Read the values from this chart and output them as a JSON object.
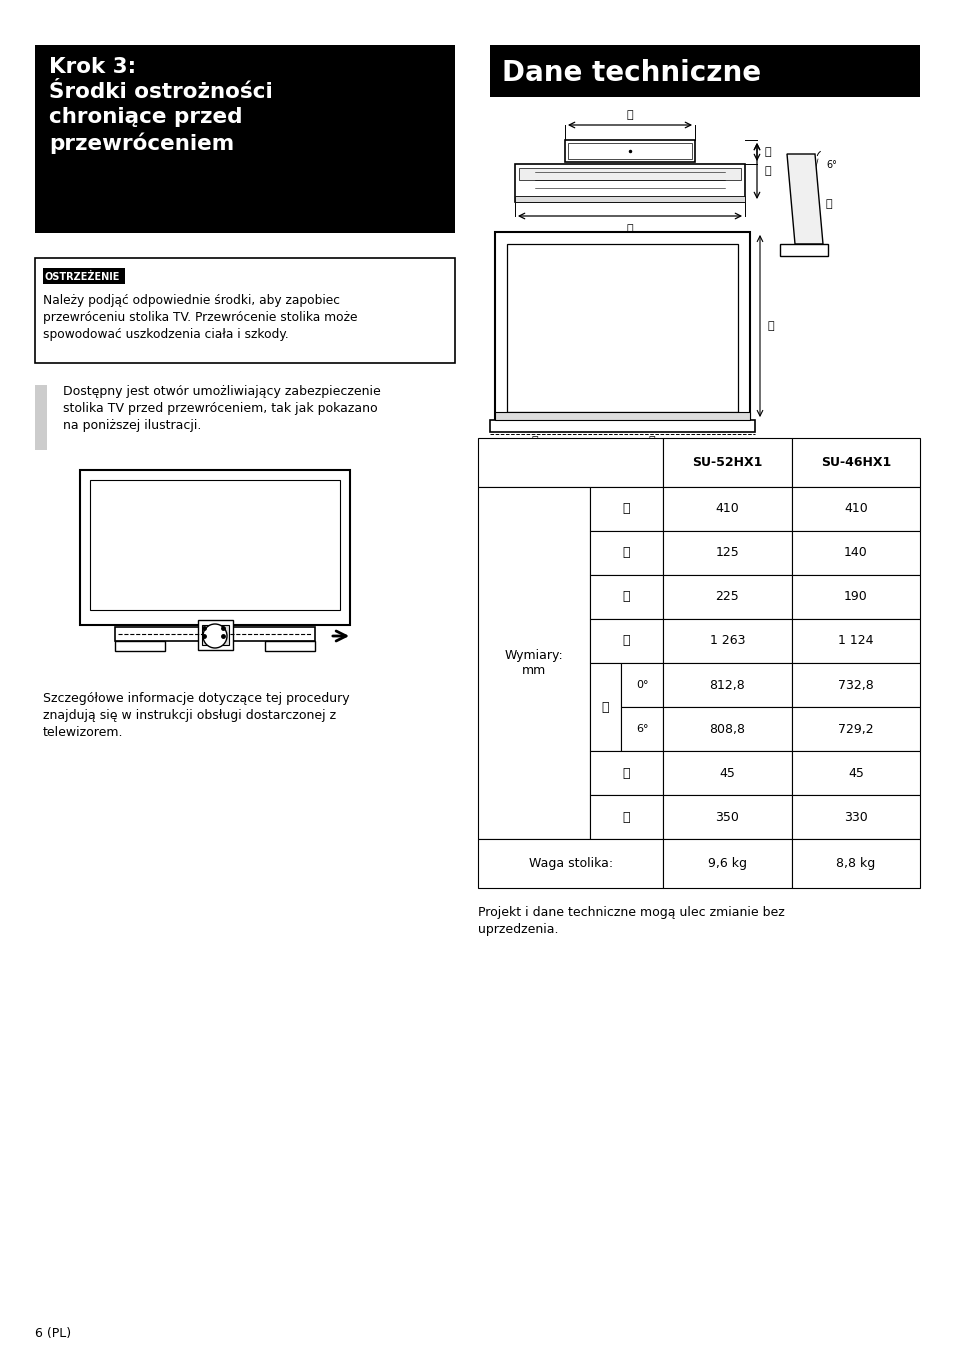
{
  "page_bg": "#ffffff",
  "left_col_title_bg": "#000000",
  "left_col_title_text": "Krok 3:\nŚrodni ostrożności\nchroniące przed\nprzewróceniem",
  "left_col_title_text_fixed": "Krok 3:\nŚrodki ostrożności\nchroniące przed\nprzewróceniem",
  "left_col_title_color": "#ffffff",
  "right_col_title_bg": "#000000",
  "right_col_title_text": "Dane techniczne",
  "right_col_title_color": "#ffffff",
  "warning_box_label": "OSTRZEŻENIE",
  "warning_text": "Należy podjąć odpowiednie środki, aby zapobiec\nprzewróceniu stolika TV. Przewrócenie stolika może\nspowodować uszkodzenia ciała i szkody.",
  "body_text_1": "Dostępny jest otwór umożliwiający zabezpieczenie\nstolika TV przed przewróceniem, tak jak pokazano\nna poniższej ilustracji.",
  "body_text_2": "Szczegółowe informacje dotyczące tej procedury\nznajdują się w instrukcji obsługi dostarczonej z\ntelewizorem.",
  "col_A": "A",
  "col_B": "B",
  "col_C": "C",
  "col_D": "D",
  "col_E": "E",
  "col_F": "F",
  "col_G": "G",
  "table_col1": "SU-52HX1",
  "table_col2": "SU-46HX1",
  "table_row_label": "Wymiary:\nmm",
  "sym_A": "Ⓐ",
  "sym_B": "Ⓑ",
  "sym_C": "Ⓒ",
  "sym_D": "Ⓓ",
  "sym_E": "Ⓔ",
  "sym_F": "Ⓕ",
  "sym_G": "Ⓖ",
  "val_A": [
    "410",
    "410"
  ],
  "val_B": [
    "125",
    "140"
  ],
  "val_C": [
    "225",
    "190"
  ],
  "val_D": [
    "1 263",
    "1 124"
  ],
  "val_E0": [
    "0°",
    "812,8",
    "732,8"
  ],
  "val_E6": [
    "6°",
    "808,8",
    "729,2"
  ],
  "val_F": [
    "45",
    "45"
  ],
  "val_G": [
    "350",
    "330"
  ],
  "footer_row": [
    "Waga stolika:",
    "9,6 kg",
    "8,8 kg"
  ],
  "footnote": "Projekt i dane techniczne mogą ulec zmianie bez\nuprzedzenia.",
  "page_number": "6 (PL)",
  "lm": 35,
  "rm": 920,
  "tm": 35,
  "col_div": 460
}
